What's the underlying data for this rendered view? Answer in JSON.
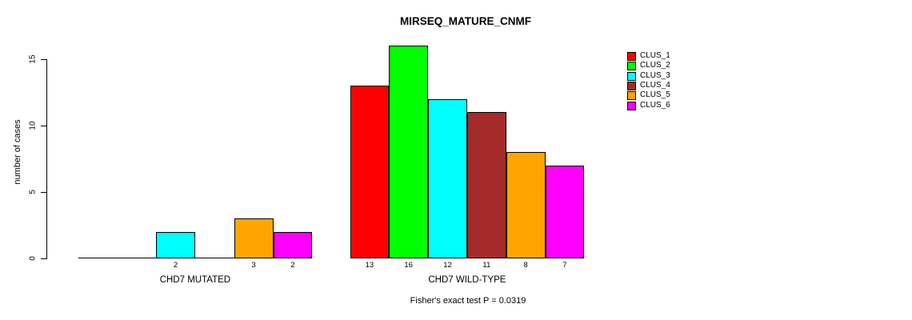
{
  "chart_data": {
    "type": "bar",
    "title": "MIRSEQ_MATURE_CNMF",
    "ylabel": "number of cases",
    "ylim": [
      0,
      15
    ],
    "yticks": [
      0,
      5,
      10,
      15
    ],
    "grid": false,
    "legend_position": "top-right",
    "categories": [
      "CHD7 MUTATED",
      "CHD7 WILD-TYPE"
    ],
    "series": [
      {
        "name": "CLUS_1",
        "color": "#FF0000",
        "values": [
          0,
          13
        ]
      },
      {
        "name": "CLUS_2",
        "color": "#00FF00",
        "values": [
          0,
          16
        ]
      },
      {
        "name": "CLUS_3",
        "color": "#00FFFF",
        "values": [
          2,
          12
        ]
      },
      {
        "name": "CLUS_4",
        "color": "#A52A2A",
        "values": [
          0,
          11
        ]
      },
      {
        "name": "CLUS_5",
        "color": "#FFA500",
        "values": [
          3,
          8
        ]
      },
      {
        "name": "CLUS_6",
        "color": "#FF00FF",
        "values": [
          2,
          7
        ]
      }
    ],
    "bar_value_labels": {
      "CHD7 MUTATED": [
        "",
        "",
        "2",
        "",
        "3",
        "2"
      ],
      "CHD7 WILD-TYPE": [
        "13",
        "16",
        "12",
        "11",
        "8",
        "7"
      ]
    },
    "annotation": "Fisher's exact test P = 0.0319",
    "colors": {
      "background": "#FFFFFF",
      "axis": "#000000",
      "text": "#000000"
    }
  }
}
